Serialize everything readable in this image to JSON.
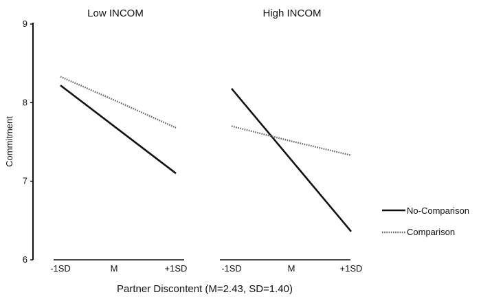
{
  "chart_data": {
    "type": "line",
    "ylabel": "Commitment",
    "xlabel": "Partner Discontent (M=2.43, SD=1.40)",
    "ylim": [
      6,
      9
    ],
    "yticks": [
      "6",
      "7",
      "8",
      "9"
    ],
    "legend": {
      "placement": "right",
      "entries": [
        {
          "name": "No-Comparison",
          "style": "solid"
        },
        {
          "name": "Comparison",
          "style": "dotted"
        }
      ]
    },
    "panels": [
      {
        "title": "Low INCOM",
        "categories": [
          "-1SD",
          "M",
          "+1SD"
        ],
        "series": [
          {
            "name": "No-Comparison",
            "style": "solid",
            "values": [
              8.22,
              7.66,
              7.1
            ]
          },
          {
            "name": "Comparison",
            "style": "dotted",
            "values": [
              8.33,
              8.01,
              7.68
            ]
          }
        ]
      },
      {
        "title": "High INCOM",
        "categories": [
          "-1SD",
          "M",
          "+1SD"
        ],
        "series": [
          {
            "name": "No-Comparison",
            "style": "solid",
            "values": [
              8.18,
              7.27,
              6.36
            ]
          },
          {
            "name": "Comparison",
            "style": "dotted",
            "values": [
              7.7,
              7.51,
              7.33
            ]
          }
        ]
      }
    ]
  }
}
